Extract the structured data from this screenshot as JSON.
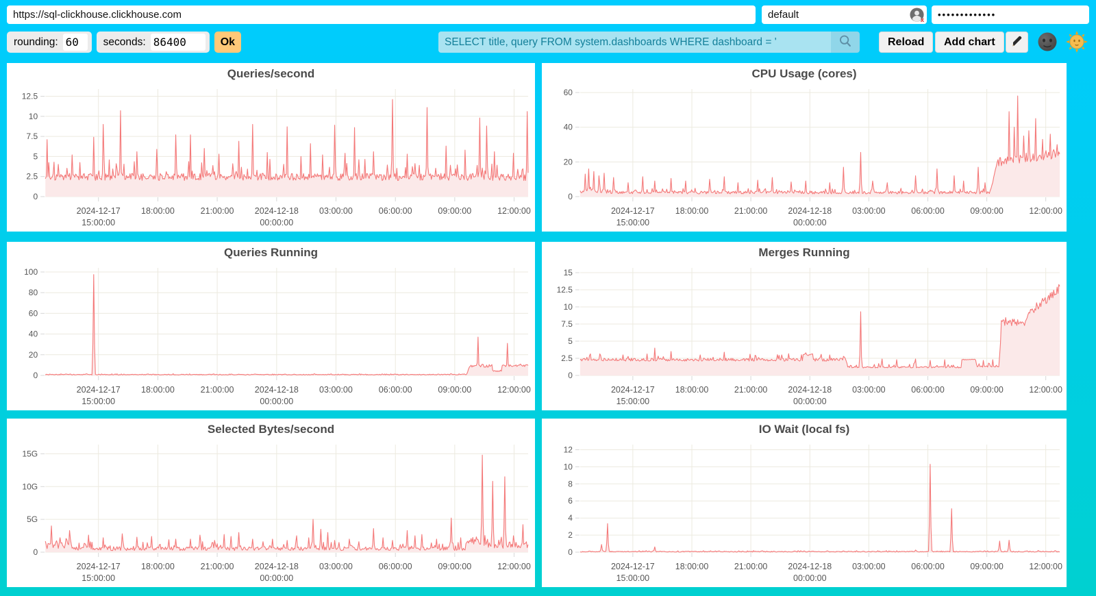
{
  "topbar": {
    "url": "https://sql-clickhouse.clickhouse.com",
    "user": "default",
    "password_masked": "•••••••••••••"
  },
  "controls": {
    "rounding_label": "rounding:",
    "rounding_value": "60",
    "seconds_label": "seconds:",
    "seconds_value": "86400",
    "ok_label": "Ok",
    "query_value": "SELECT title, query FROM system.dashboards WHERE dashboard = '",
    "reload_label": "Reload",
    "add_chart_label": "Add chart"
  },
  "icons": {
    "user_badge": "user-silhouette-with-red-x",
    "search": "magnifier",
    "edit": "pencil",
    "dark_theme": "new-moon-face",
    "light_theme": "sun-with-face"
  },
  "colors": {
    "background_top": "#00CCFF",
    "background_bottom": "#00D0D0",
    "line": "#F47878",
    "fill": "#FBE9E9",
    "grid": "#ECEADF",
    "tick": "#D7D7D7",
    "axis_text": "#555555",
    "ok_button": "#FFC878",
    "query_bg": "#A9E3F1",
    "query_text": "#14809A",
    "search_bg": "#90D6E9"
  },
  "x_axis": {
    "fractions": [
      0.11,
      0.233,
      0.356,
      0.479,
      0.602,
      0.725,
      0.848,
      0.971
    ],
    "labels": [
      "2024-12-17\n15:00:00",
      "18:00:00",
      "21:00:00",
      "2024-12-18\n00:00:00",
      "03:00:00",
      "06:00:00",
      "09:00:00",
      "12:00:00"
    ]
  },
  "charts": [
    {
      "type": "area",
      "title": "Queries/second",
      "ylim": 13.4,
      "y_ticks": [
        {
          "v": 0,
          "l": "0"
        },
        {
          "v": 2.5,
          "l": "2.5"
        },
        {
          "v": 5,
          "l": "5"
        },
        {
          "v": 7.5,
          "l": "7.5"
        },
        {
          "v": 10,
          "l": "10"
        },
        {
          "v": 12.5,
          "l": "12.5"
        }
      ],
      "segments": [
        [
          0,
          1,
          2.45,
          2.45,
          0.45,
          2.2
        ]
      ],
      "spikes": [
        [
          0.004,
          7.1
        ],
        [
          0.055,
          5.2
        ],
        [
          0.1,
          7.4
        ],
        [
          0.12,
          9.0
        ],
        [
          0.155,
          10.7
        ],
        [
          0.19,
          5.6
        ],
        [
          0.23,
          5.9
        ],
        [
          0.27,
          7.7
        ],
        [
          0.3,
          7.7
        ],
        [
          0.33,
          6.0
        ],
        [
          0.36,
          5.3
        ],
        [
          0.4,
          6.9
        ],
        [
          0.43,
          9.0
        ],
        [
          0.46,
          5.5
        ],
        [
          0.5,
          8.7
        ],
        [
          0.53,
          5.0
        ],
        [
          0.55,
          6.6
        ],
        [
          0.575,
          5.2
        ],
        [
          0.6,
          8.9
        ],
        [
          0.62,
          5.4
        ],
        [
          0.64,
          8.6
        ],
        [
          0.68,
          5.6
        ],
        [
          0.72,
          12.1
        ],
        [
          0.75,
          5.3
        ],
        [
          0.79,
          11.1
        ],
        [
          0.83,
          6.3
        ],
        [
          0.87,
          5.8
        ],
        [
          0.9,
          9.8
        ],
        [
          0.915,
          8.8
        ],
        [
          0.93,
          5.6
        ],
        [
          0.97,
          5.4
        ],
        [
          0.998,
          10.6
        ]
      ]
    },
    {
      "type": "area",
      "title": "CPU Usage (cores)",
      "ylim": 62,
      "y_ticks": [
        {
          "v": 0,
          "l": "0"
        },
        {
          "v": 20,
          "l": "20"
        },
        {
          "v": 40,
          "l": "40"
        },
        {
          "v": 60,
          "l": "60"
        }
      ],
      "segments": [
        [
          0,
          0.08,
          3.0,
          3.0,
          1.2,
          4.0
        ],
        [
          0.08,
          0.855,
          2.4,
          2.4,
          0.8,
          2.5
        ],
        [
          0.855,
          0.87,
          2.5,
          20,
          1.0,
          0
        ],
        [
          0.87,
          1,
          20,
          24,
          2.5,
          4
        ]
      ],
      "spikes": [
        [
          0.01,
          13
        ],
        [
          0.018,
          16
        ],
        [
          0.028,
          14.5
        ],
        [
          0.04,
          12
        ],
        [
          0.05,
          13.5
        ],
        [
          0.07,
          11
        ],
        [
          0.1,
          8
        ],
        [
          0.13,
          11.5
        ],
        [
          0.155,
          9
        ],
        [
          0.19,
          10.5
        ],
        [
          0.22,
          9
        ],
        [
          0.27,
          10
        ],
        [
          0.3,
          11.5
        ],
        [
          0.33,
          8
        ],
        [
          0.37,
          9.5
        ],
        [
          0.4,
          11
        ],
        [
          0.44,
          8.5
        ],
        [
          0.47,
          9
        ],
        [
          0.52,
          8
        ],
        [
          0.55,
          17
        ],
        [
          0.585,
          25.5
        ],
        [
          0.61,
          9
        ],
        [
          0.64,
          8
        ],
        [
          0.7,
          12
        ],
        [
          0.745,
          16
        ],
        [
          0.78,
          12
        ],
        [
          0.8,
          9
        ],
        [
          0.83,
          17
        ],
        [
          0.845,
          8
        ],
        [
          0.895,
          49
        ],
        [
          0.905,
          40
        ],
        [
          0.912,
          58
        ],
        [
          0.925,
          35
        ],
        [
          0.935,
          38
        ],
        [
          0.95,
          45
        ],
        [
          0.965,
          33
        ],
        [
          0.98,
          36
        ],
        [
          0.995,
          30
        ]
      ]
    },
    {
      "type": "area",
      "title": "Queries Running",
      "ylim": 104,
      "y_ticks": [
        {
          "v": 0,
          "l": "0"
        },
        {
          "v": 20,
          "l": "20"
        },
        {
          "v": 40,
          "l": "40"
        },
        {
          "v": 60,
          "l": "60"
        },
        {
          "v": 80,
          "l": "80"
        },
        {
          "v": 100,
          "l": "100"
        }
      ],
      "segments": [
        [
          0,
          0.873,
          0.8,
          0.8,
          0.35,
          0.8
        ],
        [
          0.873,
          0.878,
          0.8,
          8.5,
          0.5,
          0
        ],
        [
          0.878,
          0.925,
          9,
          9,
          1,
          2
        ],
        [
          0.925,
          0.945,
          4.5,
          4.5,
          0.8,
          0.5
        ],
        [
          0.945,
          1,
          9.5,
          9.5,
          1,
          1.5
        ]
      ],
      "spikes": [
        [
          0.1,
          97.5
        ],
        [
          0.896,
          37
        ],
        [
          0.957,
          31
        ]
      ]
    },
    {
      "type": "area",
      "title": "Merges Running",
      "ylim": 15.7,
      "y_ticks": [
        {
          "v": 0,
          "l": "0"
        },
        {
          "v": 2.5,
          "l": "2.5"
        },
        {
          "v": 5,
          "l": "5"
        },
        {
          "v": 7.5,
          "l": "7.5"
        },
        {
          "v": 10,
          "l": "10"
        },
        {
          "v": 12.5,
          "l": "12.5"
        },
        {
          "v": 15,
          "l": "15"
        }
      ],
      "segments": [
        [
          0,
          0.465,
          2.3,
          2.3,
          0.22,
          0.9
        ],
        [
          0.465,
          0.485,
          3.0,
          3.0,
          0.15,
          0
        ],
        [
          0.485,
          0.555,
          2.3,
          2.3,
          0.22,
          0.9
        ],
        [
          0.555,
          0.795,
          1.2,
          1.2,
          0.12,
          0.7
        ],
        [
          0.795,
          0.825,
          2.3,
          2.3,
          0.08,
          0
        ],
        [
          0.825,
          0.873,
          1.3,
          1.3,
          0.1,
          0.5
        ],
        [
          0.873,
          0.878,
          1.3,
          6.0,
          0.2,
          0
        ],
        [
          0.878,
          0.93,
          7.7,
          7.7,
          0.45,
          0.8
        ],
        [
          0.93,
          1,
          8.6,
          12.6,
          0.5,
          0.8
        ]
      ],
      "spikes": [
        [
          0.02,
          2.9
        ],
        [
          0.09,
          3.0
        ],
        [
          0.155,
          4.0
        ],
        [
          0.19,
          3.5
        ],
        [
          0.25,
          3.0
        ],
        [
          0.3,
          3.4
        ],
        [
          0.355,
          3.1
        ],
        [
          0.42,
          3.0
        ],
        [
          0.47,
          3.3
        ],
        [
          0.52,
          3.0
        ],
        [
          0.585,
          9.3
        ],
        [
          0.63,
          2.4
        ],
        [
          0.66,
          2.3
        ],
        [
          0.7,
          2.4
        ],
        [
          0.73,
          2.2
        ],
        [
          0.76,
          2.3
        ],
        [
          0.84,
          2.2
        ],
        [
          0.86,
          2.3
        ],
        [
          0.995,
          12.9
        ]
      ]
    },
    {
      "type": "area",
      "title": "Selected Bytes/second",
      "ylim": 16.4,
      "y_ticks": [
        {
          "v": 0,
          "l": "0"
        },
        {
          "v": 5,
          "l": "5G"
        },
        {
          "v": 10,
          "l": "10G"
        },
        {
          "v": 15,
          "l": "15G"
        }
      ],
      "segments": [
        [
          0,
          0.055,
          1.0,
          1.0,
          0.5,
          1.2
        ],
        [
          0.055,
          0.87,
          0.55,
          0.55,
          0.3,
          1.1
        ],
        [
          0.87,
          0.9,
          1.6,
          1.6,
          0.4,
          1.0
        ],
        [
          0.9,
          1,
          1.1,
          1.1,
          0.5,
          1.5
        ]
      ],
      "spikes": [
        [
          0.012,
          4.0
        ],
        [
          0.03,
          2.2
        ],
        [
          0.05,
          3.3
        ],
        [
          0.09,
          2.6
        ],
        [
          0.12,
          2.2
        ],
        [
          0.16,
          2.8
        ],
        [
          0.19,
          2.3
        ],
        [
          0.22,
          2.4
        ],
        [
          0.255,
          1.9
        ],
        [
          0.27,
          2.0
        ],
        [
          0.3,
          2.0
        ],
        [
          0.32,
          2.6
        ],
        [
          0.35,
          1.8
        ],
        [
          0.37,
          2.7
        ],
        [
          0.385,
          2.4
        ],
        [
          0.4,
          3.0
        ],
        [
          0.43,
          2.0
        ],
        [
          0.45,
          1.6
        ],
        [
          0.47,
          2.0
        ],
        [
          0.5,
          1.8
        ],
        [
          0.52,
          2.5
        ],
        [
          0.545,
          2.2
        ],
        [
          0.555,
          5.0
        ],
        [
          0.57,
          3.5
        ],
        [
          0.585,
          3.0
        ],
        [
          0.6,
          1.8
        ],
        [
          0.63,
          2.0
        ],
        [
          0.65,
          1.6
        ],
        [
          0.68,
          3.6
        ],
        [
          0.7,
          2.2
        ],
        [
          0.72,
          1.8
        ],
        [
          0.75,
          3.3
        ],
        [
          0.765,
          2.5
        ],
        [
          0.78,
          2.7
        ],
        [
          0.81,
          2.0
        ],
        [
          0.84,
          5.2
        ],
        [
          0.86,
          2.2
        ],
        [
          0.905,
          14.8
        ],
        [
          0.927,
          10.8
        ],
        [
          0.952,
          11.5
        ],
        [
          0.97,
          2.5
        ],
        [
          0.99,
          4.2
        ]
      ]
    },
    {
      "type": "area",
      "title": "IO Wait (local fs)",
      "ylim": 12.6,
      "y_ticks": [
        {
          "v": 0,
          "l": "0"
        },
        {
          "v": 2,
          "l": "2"
        },
        {
          "v": 4,
          "l": "4"
        },
        {
          "v": 6,
          "l": "6"
        },
        {
          "v": 8,
          "l": "8"
        },
        {
          "v": 10,
          "l": "10"
        },
        {
          "v": 12,
          "l": "12"
        }
      ],
      "segments": [
        [
          0,
          1,
          0.06,
          0.06,
          0.05,
          0.12
        ]
      ],
      "spikes": [
        [
          0.045,
          0.9
        ],
        [
          0.057,
          3.35
        ],
        [
          0.1,
          0.12
        ],
        [
          0.155,
          0.62
        ],
        [
          0.22,
          0.1
        ],
        [
          0.3,
          0.12
        ],
        [
          0.42,
          0.1
        ],
        [
          0.56,
          0.12
        ],
        [
          0.655,
          0.1
        ],
        [
          0.7,
          0.25
        ],
        [
          0.73,
          10.3
        ],
        [
          0.775,
          5.1
        ],
        [
          0.85,
          0.15
        ],
        [
          0.875,
          1.3
        ],
        [
          0.895,
          1.4
        ],
        [
          0.955,
          0.2
        ],
        [
          0.99,
          0.15
        ]
      ]
    }
  ]
}
